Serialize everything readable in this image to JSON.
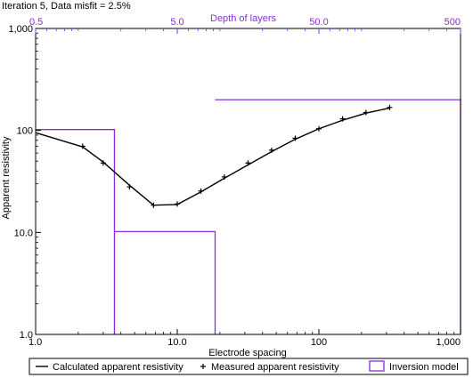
{
  "chart_data": {
    "type": "line",
    "title": "Iteration 5, Data misfit = 2.5%",
    "xlabel": "Electrode spacing",
    "ylabel": "Apparent resistivity",
    "top_axis_label": "Depth of layers",
    "x_scale": "log",
    "y_scale": "log",
    "xlim": [
      1,
      1000
    ],
    "ylim": [
      1,
      1000
    ],
    "top_axis_lim": [
      0.5,
      500
    ],
    "x_ticks": [
      {
        "value": 1,
        "label": "1.0"
      },
      {
        "value": 10,
        "label": "10.0"
      },
      {
        "value": 100,
        "label": "100"
      },
      {
        "value": 1000,
        "label": "1,000"
      }
    ],
    "y_ticks": [
      {
        "value": 1,
        "label": "1.0"
      },
      {
        "value": 10,
        "label": "10.0"
      },
      {
        "value": 100,
        "label": "100"
      },
      {
        "value": 1000,
        "label": "1,000"
      }
    ],
    "top_ticks": [
      {
        "value": 0.5,
        "label": "0.5"
      },
      {
        "value": 5,
        "label": "5.0"
      },
      {
        "value": 50,
        "label": "50.0"
      },
      {
        "value": 500,
        "label": "500"
      }
    ],
    "series": [
      {
        "name": "Calculated apparent resistivity",
        "style": "line",
        "color": "#000000",
        "x": [
          1.0,
          2.15,
          3.0,
          4.6,
          6.8,
          10.0,
          14.7,
          21.5,
          31.6,
          46.4,
          68.1,
          100,
          147,
          215,
          316
        ],
        "y": [
          95,
          69,
          49,
          29,
          18.5,
          18.8,
          25,
          34,
          46,
          62,
          82,
          104,
          126,
          148,
          166
        ]
      },
      {
        "name": "Measured apparent resistivity",
        "style": "marker",
        "marker": "+",
        "color": "#000000",
        "x": [
          2.15,
          3.0,
          4.6,
          6.8,
          10.0,
          14.7,
          21.5,
          31.6,
          46.4,
          68.1,
          100,
          147,
          215,
          316
        ],
        "y": [
          70,
          48,
          28,
          18.5,
          19,
          25.5,
          35,
          48,
          64,
          84,
          104,
          130,
          150,
          168
        ]
      }
    ],
    "model": {
      "name": "Inversion model",
      "color": "#8a2be2",
      "layers": [
        {
          "top_x": 1.0,
          "bottom_x": 3.6,
          "resistivity": 102
        },
        {
          "top_x": 3.6,
          "bottom_x": 18.5,
          "resistivity": 10.2
        },
        {
          "top_x": 18.5,
          "bottom_x": 1000,
          "resistivity": 200
        }
      ]
    },
    "legend": {
      "placement": "bottom",
      "items": [
        {
          "label": "Calculated apparent resistivity",
          "symbol": "line"
        },
        {
          "label": "Measured apparent resistivity",
          "symbol": "plus"
        },
        {
          "label": "Inversion model",
          "symbol": "box"
        }
      ]
    },
    "grid": false
  }
}
